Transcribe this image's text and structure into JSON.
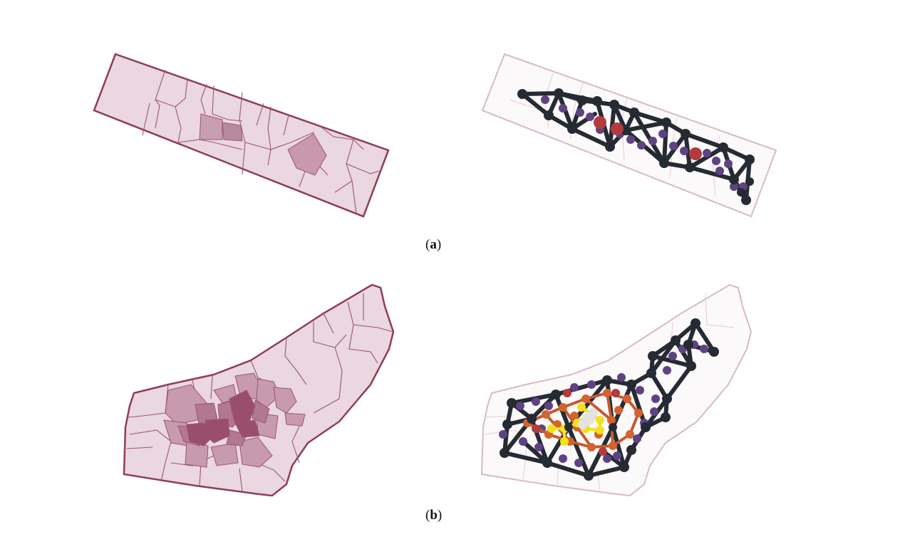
{
  "captions": {
    "a_open": "(",
    "a_letter": "a",
    "a_close": ")",
    "b_open": "(",
    "b_letter": "b",
    "b_close": ")"
  },
  "colors": {
    "region_fill": "#ead7e0",
    "region_stroke": "#8e3c5c",
    "cell_stroke": "#9b5573",
    "highlight_light": "#c898ae",
    "highlight_mid": "#b07891",
    "highlight_dark": "#9a4e6e",
    "graph_edge": "#252a33",
    "node_dark": "#252a33",
    "node_purple": "#5e4382",
    "node_red": "#b23b3f",
    "node_orange": "#d3632f",
    "node_yellow": "#f2e21a",
    "node_white": "#e3e3e3",
    "faded_region_stroke": "#d9b9c6",
    "faded_region_fill": "#fcf9fa"
  }
}
